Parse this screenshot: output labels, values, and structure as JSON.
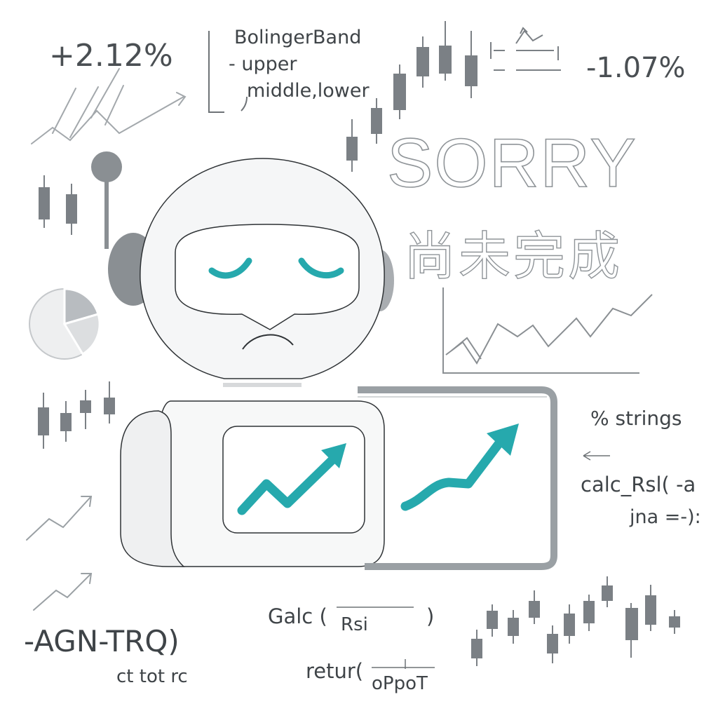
{
  "stats": {
    "gain": "+2.12%",
    "loss": "-1.07%"
  },
  "bollinger": {
    "title": "BolingerBand",
    "line1": "- upper",
    "line2": "middle,lower"
  },
  "message": {
    "title": "SORRY",
    "subtitle": "尚未完成"
  },
  "code": {
    "strings": "% strings",
    "arrow": "←",
    "calc_line1": "calc_Rsl( -a",
    "calc_line2": "jna =-):",
    "galc": "Galc (",
    "rsi": "Rsi",
    "galc_close": ")",
    "retur": "retur(",
    "opot": "oPpoT",
    "agn": "-AGN-TRQ)",
    "ct": "ct tot rc"
  },
  "colors": {
    "accent": "#26a9ad",
    "gray": "#8a8f93",
    "line": "#9aa0a4"
  },
  "icons": [
    "robot-mascot",
    "candlestick-chart",
    "line-chart",
    "pie-chart",
    "trend-arrow"
  ]
}
